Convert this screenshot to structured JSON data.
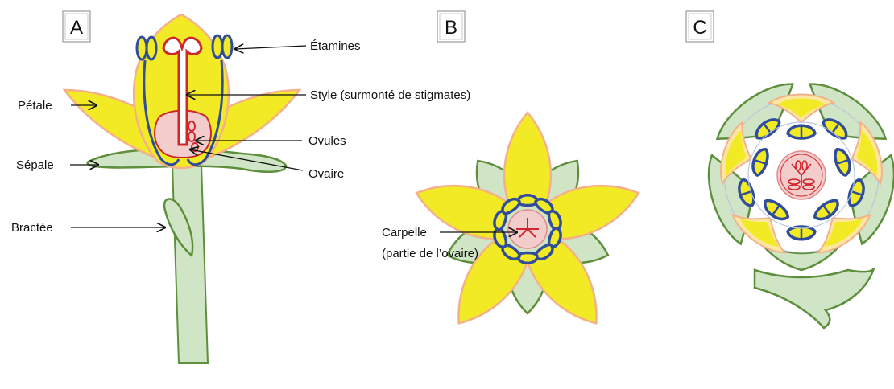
{
  "panels": {
    "a": "A",
    "b": "B",
    "c": "C"
  },
  "labels": {
    "etamines": "Étamines",
    "style": "Style (surmonté de stigmates)",
    "petale": "Pétale",
    "ovules": "Ovules",
    "sepale": "Sépale",
    "ovaire": "Ovaire",
    "bractee": "Bractée",
    "carpelle_1": "Carpelle",
    "carpelle_2": "(partie de l’ovaire)"
  },
  "colors": {
    "petal_fill": "#f2ea24",
    "petal_edge": "#f4b08a",
    "green_fill": "#cfe5c5",
    "green_edge": "#5e8f3c",
    "stamen_blue": "#2f4d9a",
    "pistil_red": "#d0262b",
    "ovary_pink": "#f3cccc"
  }
}
